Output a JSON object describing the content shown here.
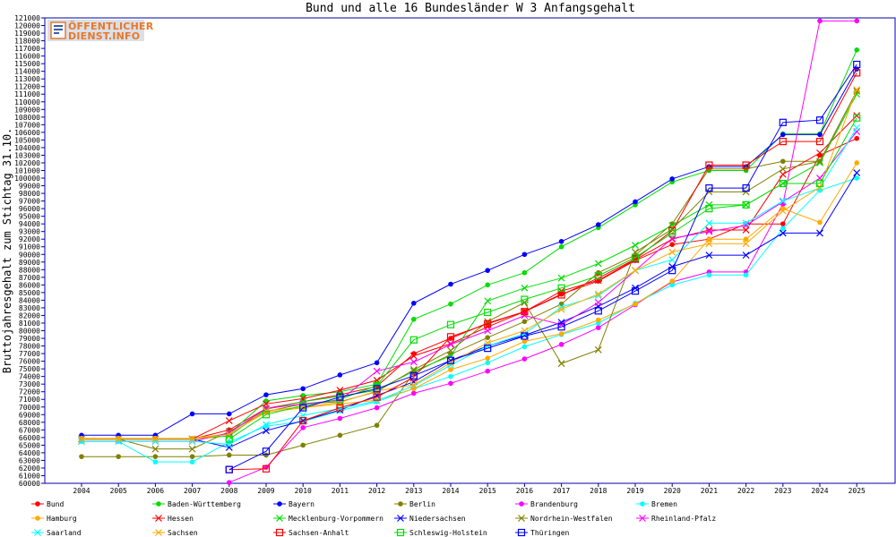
{
  "chart_data": {
    "type": "line",
    "title": "Bund und alle 16 Bundesländer W 3 Anfangsgehalt",
    "ylabel": "Bruttojahresgehalt zum Stichtag 31.10.",
    "xlabel": "",
    "ylim": [
      60000,
      121000
    ],
    "ystep": 1000,
    "grid": false,
    "legend_position": "bottom",
    "x": [
      2004,
      2005,
      2006,
      2007,
      2008,
      2009,
      2010,
      2011,
      2012,
      2013,
      2014,
      2015,
      2016,
      2017,
      2018,
      2019,
      2020,
      2021,
      2022,
      2023,
      2024,
      2025
    ],
    "series": [
      {
        "name": "Bund",
        "color": "#ff0000",
        "marker": "dot",
        "values": [
          65800,
          65800,
          65800,
          65800,
          67000,
          69800,
          70700,
          71600,
          72700,
          77000,
          79000,
          81000,
          82500,
          84800,
          86500,
          89200,
          91300,
          92000,
          94000,
          94000,
          103000,
          105200
        ]
      },
      {
        "name": "Baden-Württemberg",
        "color": "#00dd00",
        "marker": "dot",
        "values": [
          65800,
          65800,
          65800,
          65800,
          66500,
          70800,
          71500,
          72000,
          73000,
          81500,
          83500,
          86000,
          87600,
          91000,
          93500,
          96500,
          99500,
          101000,
          101000,
          105800,
          105800,
          116800
        ]
      },
      {
        "name": "Bayern",
        "color": "#0000ff",
        "marker": "dot",
        "values": [
          66300,
          66300,
          66300,
          69100,
          69100,
          71600,
          72400,
          74200,
          75800,
          83600,
          86100,
          87900,
          90000,
          91700,
          93900,
          96900,
          99900,
          101500,
          101500,
          105700,
          105700,
          114300
        ]
      },
      {
        "name": "Berlin",
        "color": "#808000",
        "marker": "dot",
        "values": [
          63500,
          63500,
          63500,
          63500,
          63700,
          63700,
          65000,
          66300,
          67600,
          74500,
          76900,
          79100,
          81200,
          83500,
          87600,
          89900,
          94000,
          101200,
          101200,
          102200,
          102200,
          111400
        ]
      },
      {
        "name": "Brandenburg",
        "color": "#ff00ff",
        "marker": "dot",
        "values": [
          null,
          null,
          null,
          null,
          60100,
          62100,
          67300,
          68500,
          69900,
          71800,
          73100,
          74700,
          76300,
          78200,
          80400,
          83400,
          86400,
          87700,
          87700,
          96600,
          120600,
          120600
        ]
      },
      {
        "name": "Bremen",
        "color": "#00ffff",
        "marker": "dot",
        "values": [
          65500,
          65500,
          62800,
          62800,
          65400,
          67500,
          68100,
          69500,
          70700,
          72400,
          74000,
          75800,
          77900,
          79500,
          81000,
          83600,
          86000,
          87300,
          87300,
          93400,
          98400,
          100000
        ]
      },
      {
        "name": "Hamburg",
        "color": "#ffaa00",
        "marker": "dot",
        "values": [
          65900,
          65900,
          65900,
          65900,
          66500,
          69300,
          69900,
          70400,
          70900,
          72400,
          74900,
          76400,
          78600,
          79600,
          81400,
          83500,
          86500,
          92000,
          92000,
          96000,
          94200,
          102000
        ]
      },
      {
        "name": "Hessen",
        "color": "#ff0000",
        "marker": "x",
        "values": [
          65800,
          65800,
          65800,
          65800,
          68200,
          70400,
          71100,
          72200,
          73500,
          76700,
          78300,
          80500,
          82500,
          85200,
          86600,
          89300,
          92000,
          93200,
          93200,
          100500,
          103300,
          108200
        ]
      },
      {
        "name": "Mecklenburg-Vorpommern",
        "color": "#00dd00",
        "marker": "x",
        "values": [
          65800,
          65800,
          65800,
          65800,
          66200,
          69700,
          70700,
          71400,
          72200,
          74700,
          76700,
          83900,
          85600,
          86900,
          88800,
          91200,
          93800,
          96500,
          96500,
          99300,
          102000,
          111000
        ]
      },
      {
        "name": "Niedersachsen",
        "color": "#0000ff",
        "marker": "x",
        "values": [
          65800,
          65800,
          65800,
          65800,
          64700,
          66900,
          68200,
          69600,
          71500,
          73300,
          76100,
          78000,
          79400,
          81100,
          83200,
          85600,
          88400,
          89900,
          89900,
          92800,
          92800,
          100700
        ]
      },
      {
        "name": "Nordrhein-Westfalen",
        "color": "#808000",
        "marker": "x",
        "values": [
          65800,
          65800,
          64500,
          64500,
          66800,
          69400,
          70400,
          70700,
          72000,
          74900,
          77400,
          81200,
          83700,
          75700,
          77500,
          90300,
          93300,
          98200,
          98200,
          101200,
          102200,
          111400
        ]
      },
      {
        "name": "Rheinland-Pfalz",
        "color": "#ff00ff",
        "marker": "x",
        "values": [
          65500,
          65500,
          65500,
          65500,
          66600,
          69800,
          70400,
          70900,
          74700,
          75900,
          78200,
          80000,
          82000,
          80800,
          83700,
          87900,
          92100,
          93000,
          93800,
          96900,
          100000,
          106100
        ]
      },
      {
        "name": "Saarland",
        "color": "#00ffff",
        "marker": "x",
        "values": [
          65500,
          65500,
          65500,
          65500,
          65100,
          67700,
          68900,
          69800,
          70800,
          72800,
          75500,
          78000,
          79600,
          83100,
          84600,
          87900,
          89300,
          94100,
          94100,
          97000,
          98700,
          106600
        ]
      },
      {
        "name": "Sachsen",
        "color": "#ffaa00",
        "marker": "x",
        "values": [
          65800,
          65800,
          65800,
          65800,
          66400,
          69500,
          70000,
          70600,
          72100,
          72900,
          75800,
          78400,
          80000,
          82800,
          84800,
          87900,
          90300,
          91400,
          91400,
          95700,
          98800,
          111600
        ]
      },
      {
        "name": "Sachsen-Anhalt",
        "color": "#ff0000",
        "marker": "square",
        "values": [
          null,
          null,
          null,
          null,
          61800,
          61900,
          68200,
          69900,
          71300,
          73900,
          79200,
          80900,
          82500,
          84700,
          86900,
          89400,
          93100,
          101700,
          101700,
          104800,
          104800,
          113800
        ]
      },
      {
        "name": "Schleswig-Holstein",
        "color": "#00dd00",
        "marker": "square",
        "values": [
          null,
          null,
          null,
          null,
          65800,
          69000,
          70200,
          71000,
          72800,
          78800,
          80800,
          82400,
          84100,
          85600,
          87200,
          89600,
          92800,
          96000,
          96500,
          99300,
          99300,
          107900
        ]
      },
      {
        "name": "Thüringen",
        "color": "#0000ff",
        "marker": "square",
        "values": [
          null,
          null,
          null,
          null,
          61800,
          64200,
          69900,
          71300,
          72400,
          74100,
          76100,
          77700,
          79300,
          80500,
          82600,
          85200,
          87900,
          98700,
          98700,
          107300,
          107600,
          114900
        ]
      }
    ]
  }
}
